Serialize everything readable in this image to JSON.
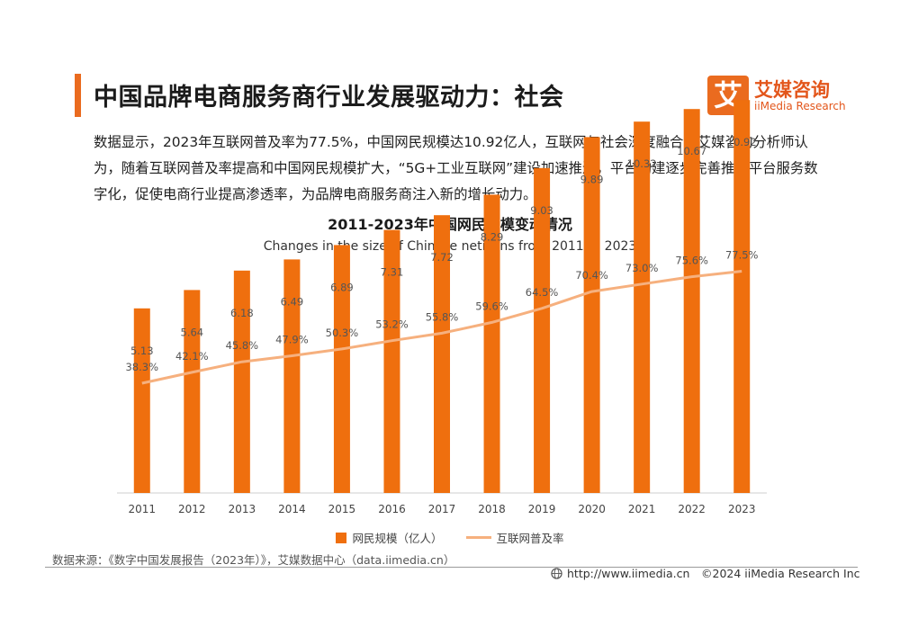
{
  "header": {
    "title": "中国品牌电商服务商行业发展驱动力：社会",
    "logo_mark": "艾",
    "logo_cn": "艾媒咨询",
    "logo_en": "iiMedia Research"
  },
  "intro": "数据显示，2023年互联网普及率为77.5%，中国网民规模达10.92亿人，互联网与社会深度融合。艾媒咨询分析师认为，随着互联网普及率提高和中国网民规模扩大，“5G+工业互联网”建设加速推进，平台构建逐步完善推动平台服务数字化，促使电商行业提高渗透率，为品牌电商服务商注入新的增长动力。",
  "chart_data": {
    "type": "bar",
    "title": "2011-2023年中国网民规模变动情况",
    "subtitle": "Changes in the size of Chinese netizens from 2011 to 2023",
    "categories": [
      "2011",
      "2012",
      "2013",
      "2014",
      "2015",
      "2016",
      "2017",
      "2018",
      "2019",
      "2020",
      "2021",
      "2022",
      "2023"
    ],
    "series": [
      {
        "name": "网民规模（亿人）",
        "type": "bar",
        "values": [
          5.13,
          5.64,
          6.18,
          6.49,
          6.89,
          7.31,
          7.72,
          8.29,
          9.03,
          9.89,
          10.32,
          10.67,
          10.92
        ],
        "labels": [
          "5.13",
          "5.64",
          "6.18",
          "6.49",
          "6.89",
          "7.31",
          "7.72",
          "8.29",
          "9.03",
          "9.89",
          "10.32",
          "10.67",
          "10.92"
        ],
        "color": "#ef6f0e"
      },
      {
        "name": "互联网普及率",
        "type": "line",
        "values": [
          38.3,
          42.1,
          45.8,
          47.9,
          50.3,
          53.2,
          55.8,
          59.6,
          64.5,
          70.4,
          73.0,
          75.6,
          77.5
        ],
        "labels": [
          "38.3%",
          "42.1%",
          "45.8%",
          "47.9%",
          "50.3%",
          "53.2%",
          "55.8%",
          "59.6%",
          "64.5%",
          "70.4%",
          "73.0%",
          "75.6%",
          "77.5%"
        ],
        "color": "#f6b07e"
      }
    ],
    "bar_ylim": [
      0,
      12
    ],
    "line_ylim": [
      0,
      90
    ],
    "legend_position": "bottom-center",
    "grid": false
  },
  "footer": {
    "source": "数据来源：《数字中国发展报告（2023年）》，艾媒数据中心（data.iimedia.cn）",
    "url": "http://www.iimedia.cn",
    "copyright": "©2024  iiMedia Research  Inc"
  },
  "colors": {
    "accent": "#ea6b1f",
    "bar": "#ef6f0e",
    "line": "#f6b07e"
  },
  "icons": {
    "globe": "globe-icon"
  }
}
